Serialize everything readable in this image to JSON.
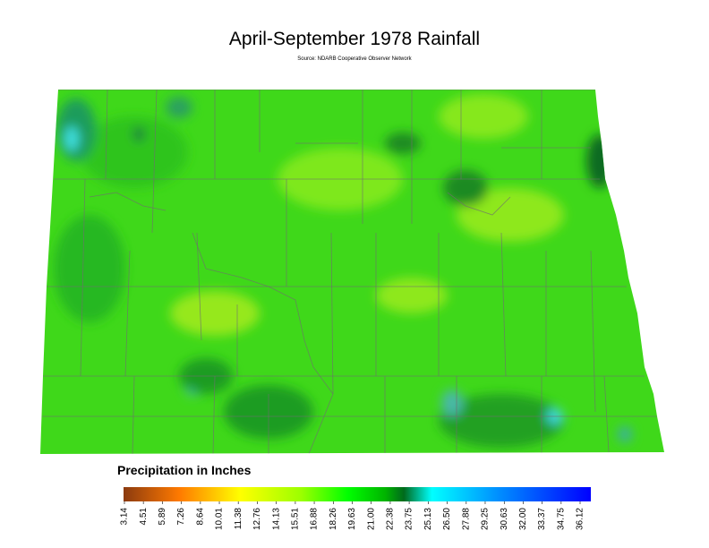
{
  "title": "April-September 1978 Rainfall",
  "subtitle": "Source: NDARB Cooperative Observer Network",
  "legend": {
    "title": "Precipitation in Inches",
    "ticks": [
      3.14,
      4.51,
      5.89,
      7.26,
      8.64,
      10.01,
      11.38,
      12.76,
      14.13,
      15.51,
      16.88,
      18.26,
      19.63,
      {
        "value": 21,
        "label": "21.00"
      },
      22.38,
      23.75,
      25.13,
      {
        "value": 26.5,
        "label": "26.50"
      },
      27.88,
      29.25,
      30.63,
      {
        "value": 32,
        "label": "32.00"
      },
      33.37,
      34.75,
      36.12
    ]
  }
}
